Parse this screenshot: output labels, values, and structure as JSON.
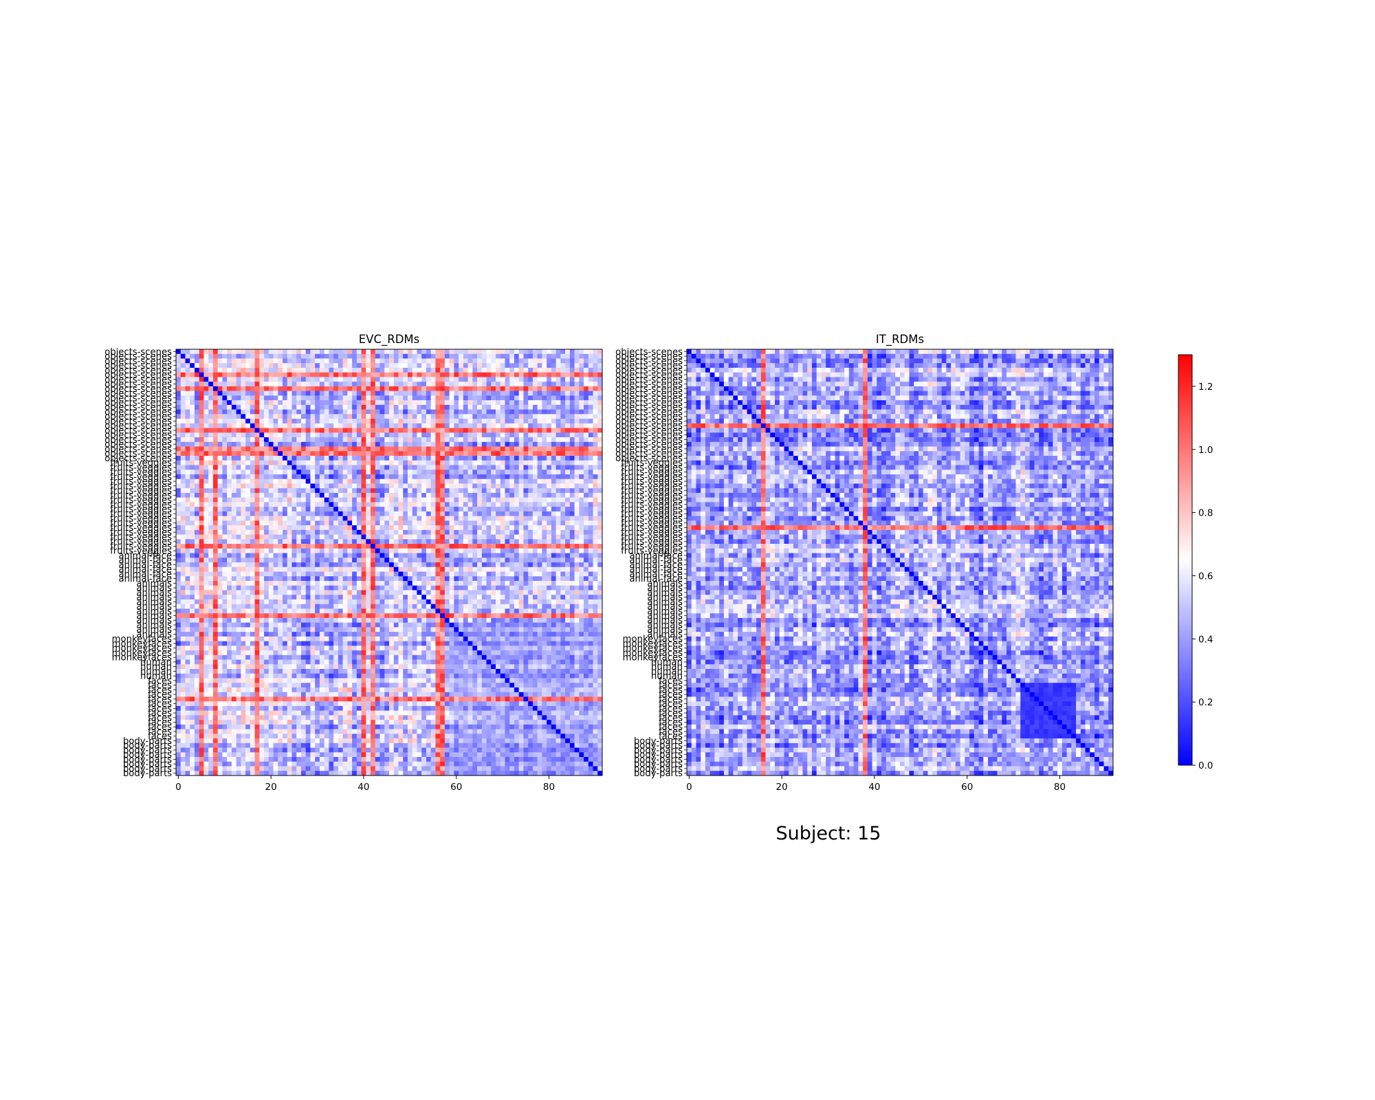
{
  "figure": {
    "suptitle": "Subject: 15"
  },
  "colorbar": {
    "min": 0.0,
    "max": 1.3,
    "ticks": [
      0.0,
      0.2,
      0.4,
      0.6,
      0.8,
      1.0,
      1.2
    ],
    "tick_labels": [
      "0.0",
      "0.2",
      "0.4",
      "0.6",
      "0.8",
      "1.0",
      "1.2"
    ],
    "colors": {
      "low": "#0000ff",
      "mid": "#ffffff",
      "high": "#ff0000"
    }
  },
  "chart_data": [
    {
      "type": "heatmap",
      "title": "EVC_RDMs",
      "n": 92,
      "x_ticks": [
        0,
        20,
        40,
        60,
        80
      ],
      "x_tick_labels": [
        "0",
        "20",
        "40",
        "60",
        "80"
      ],
      "category_groups": [
        {
          "label": "objects-scenes",
          "start": 0,
          "end": 24
        },
        {
          "label": "fruits-veggies",
          "start": 24,
          "end": 44
        },
        {
          "label": "animal-face",
          "start": 44,
          "end": 50
        },
        {
          "label": "animals",
          "start": 50,
          "end": 62
        },
        {
          "label": "monkeyfaces",
          "start": 62,
          "end": 67
        },
        {
          "label": "human",
          "start": 67,
          "end": 71
        },
        {
          "label": "faces",
          "start": 71,
          "end": 84
        },
        {
          "label": "body-parts",
          "start": 84,
          "end": 92
        }
      ],
      "value_range": [
        0.0,
        1.3
      ],
      "diagonal_value": 0.0,
      "structure": {
        "base_mean": 0.5,
        "high_rows": [
          5,
          8,
          17,
          21,
          22,
          42,
          57,
          75
        ],
        "high_cols": [
          5,
          8,
          17,
          40,
          42,
          56,
          57
        ],
        "low_block": {
          "start": 59,
          "end": 92,
          "value": 0.33
        }
      }
    },
    {
      "type": "heatmap",
      "title": "IT_RDMs",
      "n": 92,
      "x_ticks": [
        0,
        20,
        40,
        60,
        80
      ],
      "x_tick_labels": [
        "0",
        "20",
        "40",
        "60",
        "80"
      ],
      "category_groups": [
        {
          "label": "objects-scenes",
          "start": 0,
          "end": 24
        },
        {
          "label": "fruits-veggies",
          "start": 24,
          "end": 44
        },
        {
          "label": "animal-face",
          "start": 44,
          "end": 50
        },
        {
          "label": "animals",
          "start": 50,
          "end": 62
        },
        {
          "label": "monkeyfaces",
          "start": 62,
          "end": 67
        },
        {
          "label": "human",
          "start": 67,
          "end": 71
        },
        {
          "label": "faces",
          "start": 71,
          "end": 84
        },
        {
          "label": "body-parts",
          "start": 84,
          "end": 92
        }
      ],
      "value_range": [
        0.0,
        1.3
      ],
      "diagonal_value": 0.0,
      "structure": {
        "base_mean": 0.42,
        "high_rows": [
          16,
          38
        ],
        "high_cols": [
          16,
          38
        ],
        "faces_block": {
          "start": 72,
          "end": 84,
          "value": 0.1
        }
      }
    }
  ]
}
